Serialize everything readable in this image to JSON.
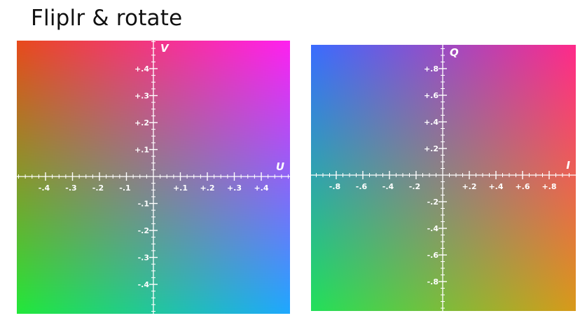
{
  "title": "Fliplr & rotate",
  "panels": [
    {
      "id": "yuv",
      "x_axis": {
        "name": "U",
        "ticks": [
          "-.4",
          "-.3",
          "-.2",
          "-.1",
          "+.1",
          "+.2",
          "+.3",
          "+.4"
        ]
      },
      "y_axis": {
        "name": "V",
        "ticks": [
          "+.4",
          "+.3",
          "+.2",
          "+.1",
          "-.1",
          "-.2",
          "-.3",
          "-.4"
        ]
      },
      "corner_colors": {
        "top_left": "#e84a1c",
        "top_right": "#ff20f0",
        "bottom_left": "#22e83a",
        "bottom_right": "#1ea8ff"
      }
    },
    {
      "id": "yiq",
      "x_axis": {
        "name": "I",
        "ticks": [
          "-.8",
          "-.6",
          "-.4",
          "-.2",
          "+.2",
          "+.4",
          "+.6",
          "+.8"
        ]
      },
      "y_axis": {
        "name": "Q",
        "ticks": [
          "+.8",
          "+.6",
          "+.4",
          "+.2",
          "-.2",
          "-.4",
          "-.6",
          "-.8"
        ]
      },
      "corner_colors": {
        "top_left": "#3a6cff",
        "top_right": "#ff2a8a",
        "bottom_left": "#22e05a",
        "bottom_right": "#d89a1a"
      }
    }
  ]
}
